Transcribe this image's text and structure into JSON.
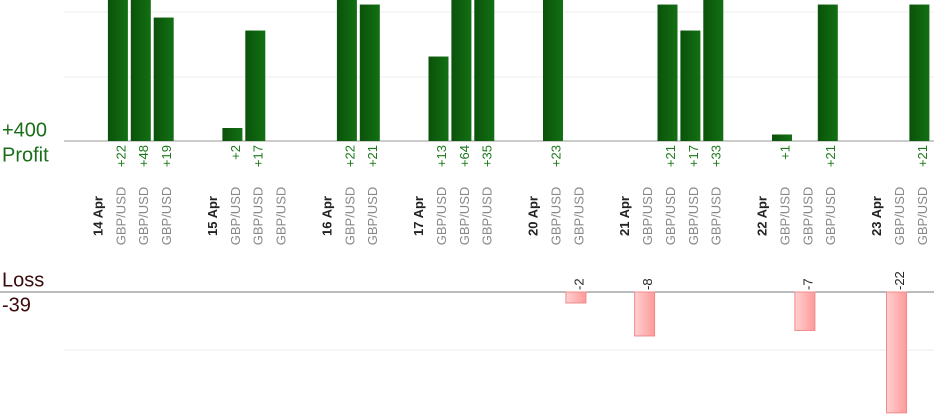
{
  "chart_data": [
    {
      "type": "bar",
      "title": "Profit",
      "total": "+400",
      "color": "#0b5e0b",
      "categories": [
        "14 Apr",
        "GBP/USD",
        "GBP/USD",
        "GBP/USD",
        null,
        "15 Apr",
        "GBP/USD",
        "GBP/USD",
        "GBP/USD",
        null,
        "16 Apr",
        "GBP/USD",
        "GBP/USD",
        null,
        "17 Apr",
        "GBP/USD",
        "GBP/USD",
        "GBP/USD",
        null,
        "20 Apr",
        "GBP/USD",
        "GBP/USD",
        null,
        "21 Apr",
        "GBP/USD",
        "GBP/USD",
        "GBP/USD",
        "GBP/USD",
        null,
        "22 Apr",
        "GBP/USD",
        "GBP/USD",
        "GBP/USD",
        null,
        "23 Apr",
        "GBP/USD",
        "GBP/USD"
      ],
      "values": [
        null,
        22,
        48,
        19,
        null,
        null,
        2,
        17,
        null,
        null,
        null,
        22,
        21,
        null,
        null,
        13,
        64,
        35,
        null,
        null,
        23,
        null,
        null,
        null,
        null,
        21,
        17,
        33,
        null,
        null,
        1,
        null,
        21,
        null,
        null,
        null,
        21
      ],
      "value_labels": [
        null,
        "+22",
        "+48",
        "+19",
        null,
        null,
        "+2",
        "+17",
        null,
        null,
        null,
        "+22",
        "+21",
        null,
        null,
        "+13",
        "+64",
        "+35",
        null,
        null,
        "+23",
        null,
        null,
        null,
        null,
        "+21",
        "+17",
        "+33",
        null,
        null,
        "+1",
        null,
        "+21",
        null,
        null,
        null,
        "+21"
      ],
      "ylim": [
        0,
        21.7
      ]
    },
    {
      "type": "bar",
      "title": "Loss",
      "total": "-39",
      "color": "#ff9a9a",
      "values": [
        null,
        null,
        null,
        null,
        null,
        null,
        null,
        null,
        null,
        null,
        null,
        null,
        null,
        null,
        null,
        null,
        null,
        null,
        null,
        null,
        null,
        -2,
        null,
        null,
        -8,
        null,
        null,
        null,
        null,
        null,
        null,
        -7,
        null,
        null,
        null,
        -22,
        null
      ],
      "ylim": [
        0,
        -23.3
      ]
    }
  ]
}
